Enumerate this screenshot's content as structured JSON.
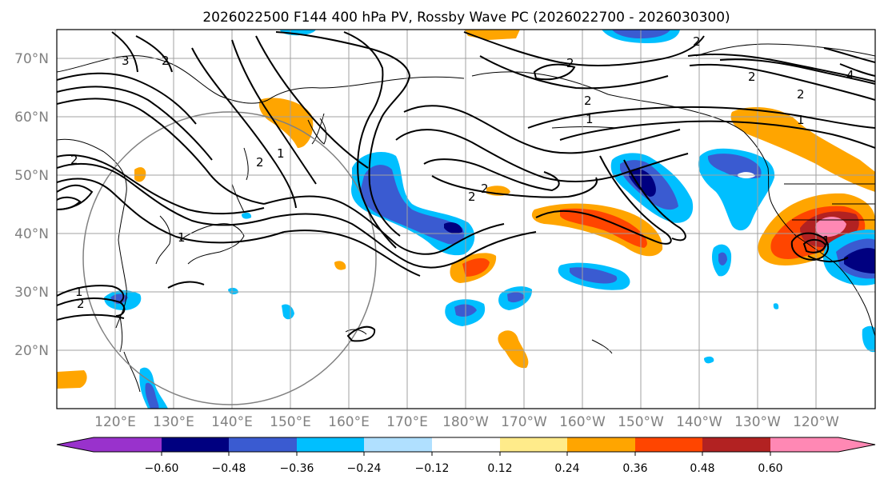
{
  "title": "2026022500 F144 400 hPa PV, Rossby Wave PC (2026022700 - 2026030300)",
  "map": {
    "lon_labels": [
      "120°E",
      "130°E",
      "140°E",
      "150°E",
      "160°E",
      "170°E",
      "180°W",
      "170°W",
      "160°W",
      "150°W",
      "140°W",
      "130°W",
      "120°W"
    ],
    "lat_labels": [
      "70°N",
      "60°N",
      "50°N",
      "40°N",
      "30°N",
      "20°N"
    ],
    "contour_labels": [
      "1",
      "1",
      "1",
      "1",
      "1",
      "1",
      "2",
      "2",
      "2",
      "2",
      "2",
      "2",
      "2",
      "2",
      "2",
      "2",
      "2",
      "3",
      "4"
    ]
  },
  "colorbar": {
    "tick_labels": [
      "−0.60",
      "−0.48",
      "−0.36",
      "−0.24",
      "−0.12",
      "0.12",
      "0.24",
      "0.36",
      "0.48",
      "0.60"
    ],
    "bin_colors": [
      "#9932cc",
      "#000080",
      "#3a5bd1",
      "#00bfff",
      "#b0e0ff",
      "#ffffff",
      "#ffeb8a",
      "#ffa500",
      "#ff4500",
      "#b22222",
      "#ff88b4"
    ]
  },
  "colors": {
    "frame": "#000000",
    "grid": "#a0a0a0",
    "circle": "#808080"
  }
}
